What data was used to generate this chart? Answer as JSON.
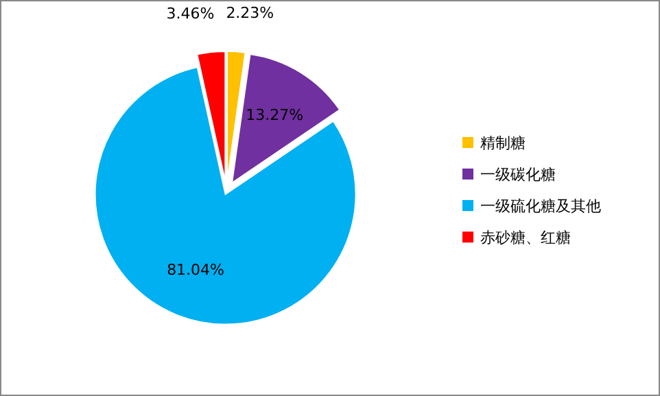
{
  "chart_data": {
    "type": "pie",
    "categories": [
      "精制糖",
      "一级碳化糖",
      "一级硫化糖及其他",
      "赤砂糖、红糖"
    ],
    "values": [
      2.23,
      13.27,
      81.04,
      3.46
    ],
    "value_labels": [
      "2.23%",
      "13.27%",
      "81.04%",
      "3.46%"
    ],
    "colors": [
      "#ffc000",
      "#7030a0",
      "#00b0f0",
      "#ff0000"
    ],
    "legend": "right"
  }
}
